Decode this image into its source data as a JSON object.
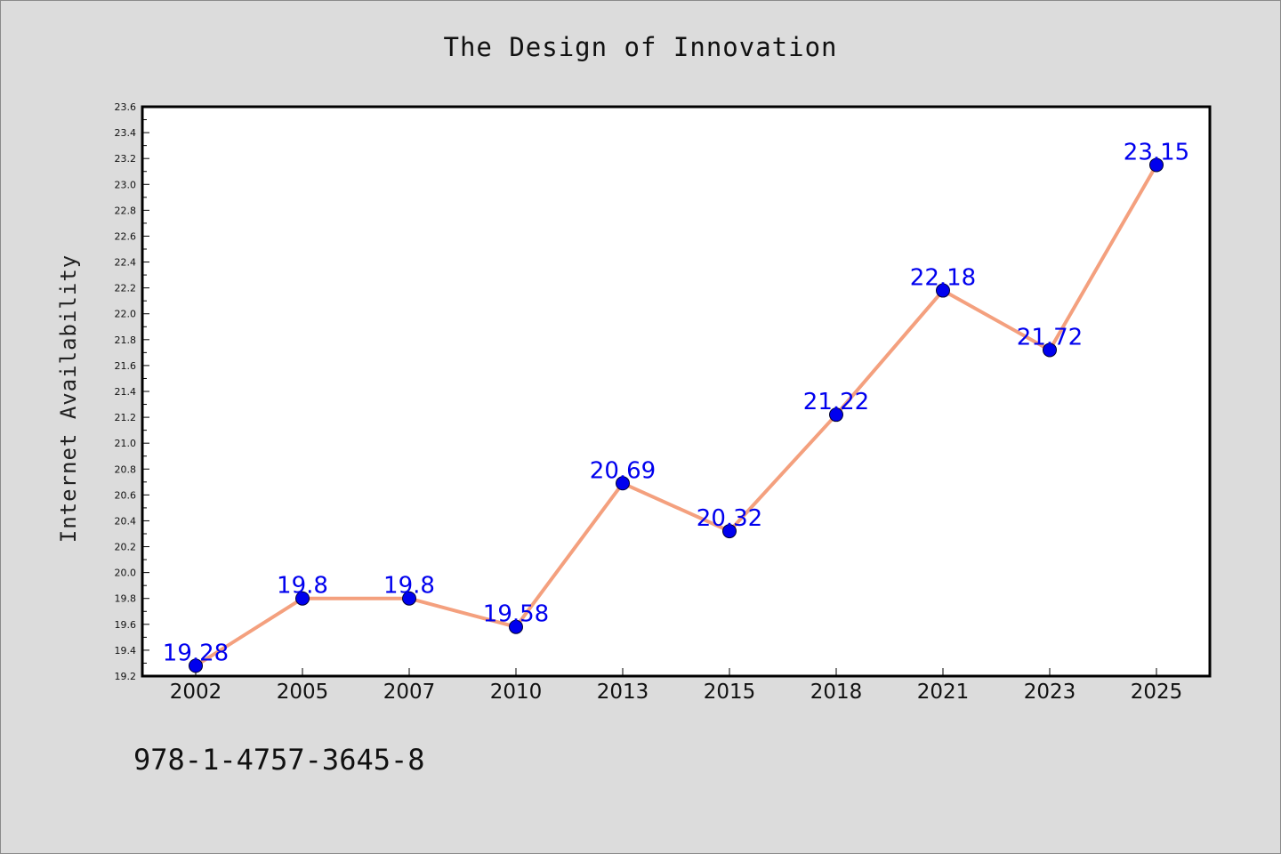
{
  "chart_data": {
    "type": "line",
    "title": "The Design of Innovation",
    "xlabel": "",
    "ylabel": "Internet Availability",
    "categories": [
      "2002",
      "2005",
      "2007",
      "2010",
      "2013",
      "2015",
      "2018",
      "2021",
      "2023",
      "2025"
    ],
    "series": [
      {
        "values": [
          19.28,
          19.8,
          19.8,
          19.58,
          20.69,
          20.32,
          21.22,
          22.18,
          21.72,
          23.15
        ],
        "data_labels": [
          "19.28",
          "19.8",
          "19.8",
          "19.58",
          "20.69",
          "20.32",
          "21.22",
          "22.18",
          "21.72",
          "23.15"
        ],
        "line_color": "#f4a07e",
        "marker_color": "#0000ee"
      }
    ],
    "ylim": [
      19.2,
      23.6
    ],
    "yticks": [
      "19.2",
      "19.4",
      "19.6",
      "19.8",
      "20.0",
      "20.2",
      "20.4",
      "20.6",
      "20.8",
      "21.0",
      "21.2",
      "21.4",
      "21.6",
      "21.8",
      "22.0",
      "22.2",
      "22.4",
      "22.6",
      "22.8",
      "23.0",
      "23.2",
      "23.4",
      "23.6"
    ],
    "grid": false,
    "legend": "none"
  },
  "footer": {
    "text": "978-1-4757-3645-8"
  },
  "colors": {
    "background": "#dcdcdc",
    "plot_background": "#ffffff",
    "label": "#0000ee"
  }
}
